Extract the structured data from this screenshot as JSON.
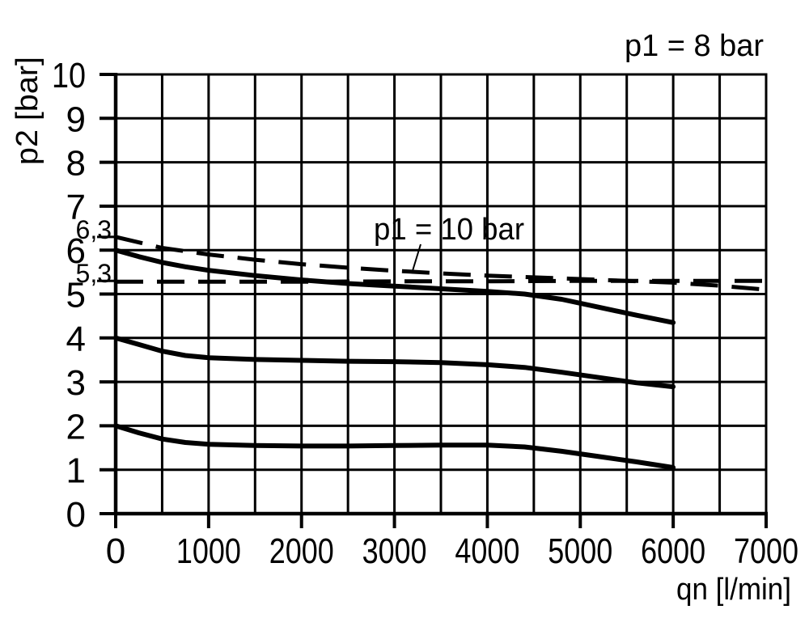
{
  "chart_data": {
    "type": "line",
    "title": "p1 = 8 bar",
    "xlabel": "qn [l/min]",
    "ylabel": "p2 [bar]",
    "xlim": [
      0,
      7000
    ],
    "ylim": [
      0,
      10
    ],
    "grid": true,
    "x_gridline_step": 500,
    "y_gridline_step": 1,
    "x_ticks": [
      {
        "value": 0,
        "label": "0"
      },
      {
        "value": 1000,
        "label": "1000"
      },
      {
        "value": 2000,
        "label": "2000"
      },
      {
        "value": 3000,
        "label": "3000"
      },
      {
        "value": 4000,
        "label": "4000"
      },
      {
        "value": 5000,
        "label": "5000"
      },
      {
        "value": 6000,
        "label": "6000"
      },
      {
        "value": 7000,
        "label": "7000"
      }
    ],
    "y_ticks": [
      {
        "value": 0,
        "label": "0"
      },
      {
        "value": 1,
        "label": "1"
      },
      {
        "value": 2,
        "label": "2"
      },
      {
        "value": 3,
        "label": "3"
      },
      {
        "value": 4,
        "label": "4"
      },
      {
        "value": 5,
        "label": "5"
      },
      {
        "value": 6,
        "label": "6"
      },
      {
        "value": 7,
        "label": "7"
      },
      {
        "value": 8,
        "label": "8"
      },
      {
        "value": 9,
        "label": "9"
      },
      {
        "value": 10,
        "label": "10"
      }
    ],
    "y_special_ticks": [
      {
        "value": 6.3,
        "label": "6,3"
      },
      {
        "value": 5.3,
        "label": "5,3"
      }
    ],
    "annotations": [
      {
        "text": "p1 = 8 bar",
        "position": "top-right"
      },
      {
        "text": "p1 = 10 bar",
        "position": "inside-plot",
        "leader_to_point": [
          3180,
          5.5
        ]
      }
    ],
    "series": [
      {
        "name": "p1 = 10 bar (dashed, starts 6.3 bar)",
        "line_style": "dashed",
        "points": [
          [
            0,
            6.3
          ],
          [
            500,
            6.05
          ],
          [
            1000,
            5.9
          ],
          [
            1500,
            5.78
          ],
          [
            2000,
            5.68
          ],
          [
            2500,
            5.6
          ],
          [
            3000,
            5.53
          ],
          [
            3500,
            5.47
          ],
          [
            4000,
            5.42
          ],
          [
            4500,
            5.38
          ],
          [
            5000,
            5.34
          ],
          [
            5500,
            5.3
          ],
          [
            6000,
            5.26
          ],
          [
            6500,
            5.19
          ],
          [
            7000,
            5.1
          ]
        ]
      },
      {
        "name": "p1 = 10 bar (dashed, flat 5.3 bar)",
        "line_style": "dashed",
        "points": [
          [
            0,
            5.28
          ],
          [
            1000,
            5.28
          ],
          [
            2000,
            5.28
          ],
          [
            3000,
            5.29
          ],
          [
            4000,
            5.29
          ],
          [
            5000,
            5.3
          ],
          [
            6000,
            5.3
          ],
          [
            7000,
            5.3
          ]
        ]
      },
      {
        "name": "p1 = 8 bar (solid, starts 6 bar)",
        "line_style": "solid",
        "points": [
          [
            0,
            6.0
          ],
          [
            250,
            5.85
          ],
          [
            500,
            5.72
          ],
          [
            750,
            5.62
          ],
          [
            1000,
            5.54
          ],
          [
            1500,
            5.42
          ],
          [
            2000,
            5.32
          ],
          [
            2500,
            5.24
          ],
          [
            3000,
            5.18
          ],
          [
            3500,
            5.12
          ],
          [
            4000,
            5.06
          ],
          [
            4400,
            5.0
          ],
          [
            4800,
            4.88
          ],
          [
            5200,
            4.7
          ],
          [
            5600,
            4.52
          ],
          [
            6000,
            4.35
          ]
        ]
      },
      {
        "name": "p1 = 8 bar (solid, starts 4 bar)",
        "line_style": "solid",
        "points": [
          [
            0,
            4.0
          ],
          [
            250,
            3.85
          ],
          [
            500,
            3.7
          ],
          [
            750,
            3.6
          ],
          [
            1000,
            3.55
          ],
          [
            1500,
            3.51
          ],
          [
            2000,
            3.49
          ],
          [
            2500,
            3.47
          ],
          [
            3000,
            3.46
          ],
          [
            3500,
            3.44
          ],
          [
            4000,
            3.39
          ],
          [
            4400,
            3.33
          ],
          [
            4800,
            3.22
          ],
          [
            5200,
            3.1
          ],
          [
            5600,
            2.98
          ],
          [
            6000,
            2.89
          ]
        ]
      },
      {
        "name": "p1 = 8 bar (solid, starts 2 bar)",
        "line_style": "solid",
        "points": [
          [
            0,
            2.0
          ],
          [
            250,
            1.84
          ],
          [
            500,
            1.7
          ],
          [
            750,
            1.62
          ],
          [
            1000,
            1.58
          ],
          [
            1500,
            1.55
          ],
          [
            2000,
            1.54
          ],
          [
            2500,
            1.54
          ],
          [
            3000,
            1.55
          ],
          [
            3500,
            1.56
          ],
          [
            4000,
            1.56
          ],
          [
            4400,
            1.52
          ],
          [
            4800,
            1.42
          ],
          [
            5200,
            1.3
          ],
          [
            5600,
            1.18
          ],
          [
            6000,
            1.05
          ]
        ]
      }
    ],
    "colors": {
      "foreground": "#000000",
      "background": "#ffffff"
    }
  }
}
